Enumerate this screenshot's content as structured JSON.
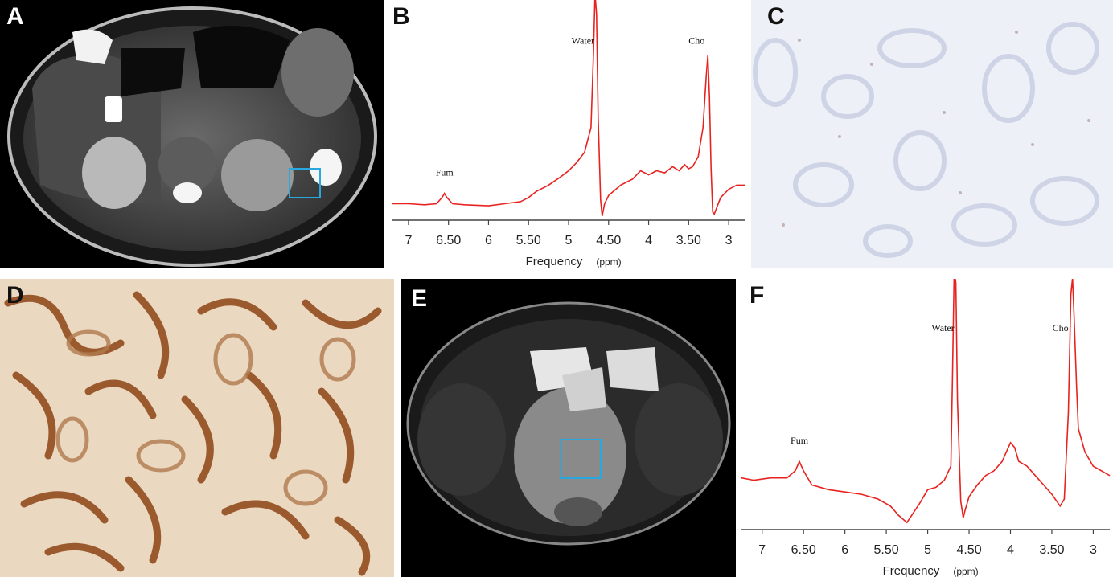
{
  "figure": {
    "panel_labels": [
      "A",
      "B",
      "C",
      "D",
      "E",
      "F"
    ]
  },
  "colors": {
    "spectrum_line": "#e8231f",
    "roi_box": "#29a8e0",
    "ihc_negative_bg": "#eef0f6",
    "ihc_positive_stain": "#9a5a2e"
  },
  "chart_data": [
    {
      "panel": "B",
      "type": "line",
      "xlabel": "Frequency",
      "xunit": "(ppm)",
      "x_reversed": true,
      "xlim": [
        7.2,
        2.8
      ],
      "ylim": [
        -0.05,
        1.0
      ],
      "tick_labels": [
        "7",
        "6.50",
        "6",
        "5.50",
        "5",
        "4.50",
        "4",
        "3.50",
        "3"
      ],
      "tick_values": [
        7,
        6.5,
        6,
        5.5,
        5,
        4.5,
        4,
        3.5,
        3
      ],
      "annotations": [
        {
          "text": "Fum",
          "x": 6.55
        },
        {
          "text": "Water",
          "x": 4.68
        },
        {
          "text": "Cho",
          "x": 3.26
        }
      ],
      "series": [
        {
          "x": [
            7.2,
            7.0,
            6.8,
            6.65,
            6.58,
            6.55,
            6.52,
            6.45,
            6.3,
            6.0,
            5.8,
            5.6,
            5.5,
            5.4,
            5.25,
            5.1,
            5.0,
            4.9,
            4.8,
            4.72,
            4.69,
            4.67,
            4.65,
            4.63,
            4.6,
            4.58,
            4.55,
            4.5,
            4.35,
            4.2,
            4.1,
            4.0,
            3.9,
            3.8,
            3.7,
            3.62,
            3.55,
            3.5,
            3.45,
            3.38,
            3.32,
            3.28,
            3.26,
            3.24,
            3.22,
            3.2,
            3.18,
            3.1,
            3.0,
            2.9,
            2.8
          ],
          "y": [
            0.03,
            0.03,
            0.025,
            0.03,
            0.06,
            0.08,
            0.06,
            0.03,
            0.025,
            0.02,
            0.03,
            0.04,
            0.06,
            0.09,
            0.12,
            0.16,
            0.19,
            0.23,
            0.28,
            0.4,
            0.75,
            1.05,
            0.95,
            0.45,
            0.05,
            -0.03,
            0.03,
            0.07,
            0.12,
            0.15,
            0.19,
            0.17,
            0.19,
            0.18,
            0.21,
            0.19,
            0.22,
            0.2,
            0.21,
            0.26,
            0.4,
            0.65,
            0.75,
            0.55,
            0.2,
            -0.01,
            -0.02,
            0.06,
            0.1,
            0.12,
            0.12
          ]
        }
      ]
    },
    {
      "panel": "F",
      "type": "line",
      "xlabel": "Frequency",
      "xunit": "(ppm)",
      "x_reversed": true,
      "xlim": [
        7.25,
        2.8
      ],
      "ylim": [
        -0.05,
        1.0
      ],
      "tick_labels": [
        "7",
        "6.50",
        "6",
        "5.50",
        "5",
        "4.50",
        "4",
        "3.50",
        "3"
      ],
      "tick_values": [
        7,
        6.5,
        6,
        5.5,
        5,
        4.5,
        4,
        3.5,
        3
      ],
      "annotations": [
        {
          "text": "Fum",
          "x": 6.55
        },
        {
          "text": "Water",
          "x": 4.68
        },
        {
          "text": "Cho",
          "x": 3.26
        }
      ],
      "series": [
        {
          "x": [
            7.25,
            7.1,
            6.9,
            6.7,
            6.6,
            6.55,
            6.5,
            6.4,
            6.2,
            6.0,
            5.8,
            5.6,
            5.45,
            5.35,
            5.25,
            5.1,
            5.0,
            4.9,
            4.8,
            4.72,
            4.7,
            4.68,
            4.66,
            4.64,
            4.6,
            4.57,
            4.55,
            4.5,
            4.4,
            4.3,
            4.2,
            4.1,
            4.0,
            3.95,
            3.9,
            3.8,
            3.7,
            3.6,
            3.5,
            3.4,
            3.35,
            3.3,
            3.27,
            3.25,
            3.23,
            3.2,
            3.18,
            3.1,
            3.0,
            2.9,
            2.8
          ],
          "y": [
            0.17,
            0.16,
            0.17,
            0.17,
            0.2,
            0.24,
            0.2,
            0.14,
            0.12,
            0.11,
            0.1,
            0.08,
            0.05,
            0.01,
            -0.02,
            0.06,
            0.12,
            0.13,
            0.16,
            0.22,
            0.6,
            1.05,
            1.0,
            0.5,
            0.07,
            0.0,
            0.03,
            0.09,
            0.14,
            0.18,
            0.2,
            0.24,
            0.32,
            0.3,
            0.24,
            0.22,
            0.18,
            0.14,
            0.1,
            0.05,
            0.08,
            0.45,
            0.95,
            1.02,
            0.85,
            0.55,
            0.38,
            0.28,
            0.22,
            0.2,
            0.18
          ]
        }
      ]
    }
  ]
}
